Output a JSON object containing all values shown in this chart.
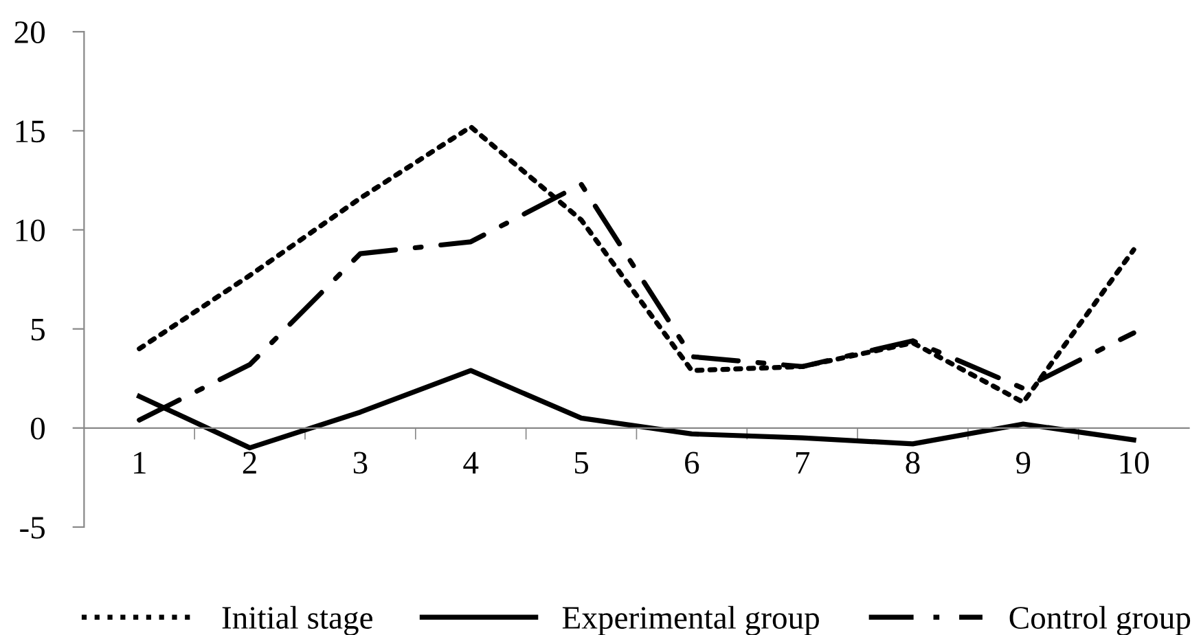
{
  "chart_data": {
    "type": "line",
    "categories": [
      "1",
      "2",
      "3",
      "4",
      "5",
      "6",
      "7",
      "8",
      "9",
      "10"
    ],
    "series": [
      {
        "name": "Initial stage",
        "color": "#000000",
        "line_style": "dotted",
        "values": [
          4.0,
          7.7,
          11.6,
          15.2,
          10.5,
          2.9,
          3.1,
          4.3,
          1.3,
          9.0
        ]
      },
      {
        "name": "Experimental group",
        "color": "#000000",
        "line_style": "solid",
        "values": [
          1.6,
          -1.0,
          0.8,
          2.9,
          0.5,
          -0.3,
          -0.5,
          -0.8,
          0.2,
          -0.6
        ]
      },
      {
        "name": "Control group",
        "color": "#000000",
        "line_style": "dashdot",
        "values": [
          0.4,
          3.2,
          8.8,
          9.4,
          12.3,
          3.6,
          3.1,
          4.4,
          2.0,
          4.8
        ]
      }
    ],
    "ylim": [
      -5,
      20
    ],
    "yticks": [
      -5,
      0,
      5,
      10,
      15,
      20
    ],
    "grid": false,
    "legend": "bottom",
    "marker": "none"
  }
}
